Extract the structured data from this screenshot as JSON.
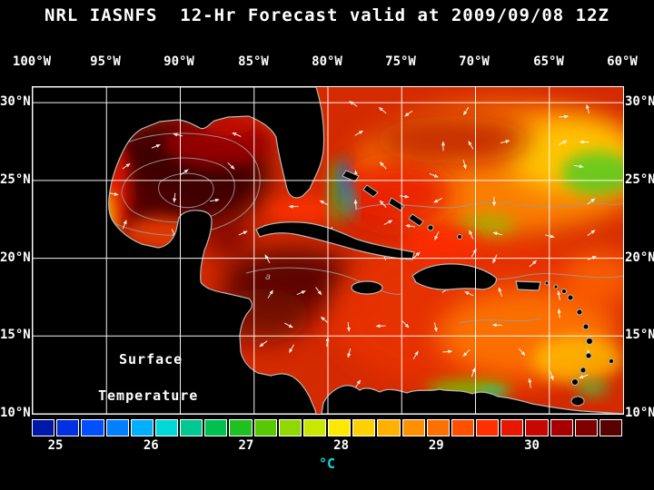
{
  "title": "NRL IASNFS  12-Hr Forecast valid at 2009/09/08 12Z",
  "axes": {
    "longitude": [
      "100°W",
      "95°W",
      "90°W",
      "85°W",
      "80°W",
      "75°W",
      "70°W",
      "65°W",
      "60°W"
    ],
    "latitude": [
      "30°N",
      "25°N",
      "20°N",
      "15°N",
      "10°N"
    ]
  },
  "map": {
    "caption_line1": "Surface",
    "caption_line2": "Temperature",
    "contour_label": "a"
  },
  "colorbar": {
    "unit": "°C",
    "ticks": [
      "25",
      "26",
      "27",
      "28",
      "29",
      "30"
    ],
    "tick_positions_pct": [
      4.0,
      20.2,
      36.3,
      52.4,
      68.5,
      84.7
    ],
    "segment_colors": [
      "#0018a8",
      "#0030e0",
      "#0050ff",
      "#0080ff",
      "#00b0ff",
      "#00d8d8",
      "#00c890",
      "#00c050",
      "#20c020",
      "#58c800",
      "#90d800",
      "#c8e800",
      "#ffe800",
      "#ffd000",
      "#ffb000",
      "#ff9000",
      "#ff7000",
      "#ff5000",
      "#ff3000",
      "#e81800",
      "#c80800",
      "#a80000",
      "#800000",
      "#580000"
    ]
  },
  "chart_data": {
    "type": "heatmap",
    "title": "NRL IASNFS 12-Hr Forecast valid at 2009/09/08 12Z",
    "variable": "Surface Temperature",
    "units": "°C",
    "x_ticks": [
      "100°W",
      "95°W",
      "90°W",
      "85°W",
      "80°W",
      "75°W",
      "70°W",
      "65°W",
      "60°W"
    ],
    "y_ticks": [
      "30°N",
      "25°N",
      "20°N",
      "15°N",
      "10°N"
    ],
    "colorbar_ticks": [
      25,
      26,
      27,
      28,
      29,
      30
    ],
    "legend_position": "bottom",
    "grid": true
  }
}
